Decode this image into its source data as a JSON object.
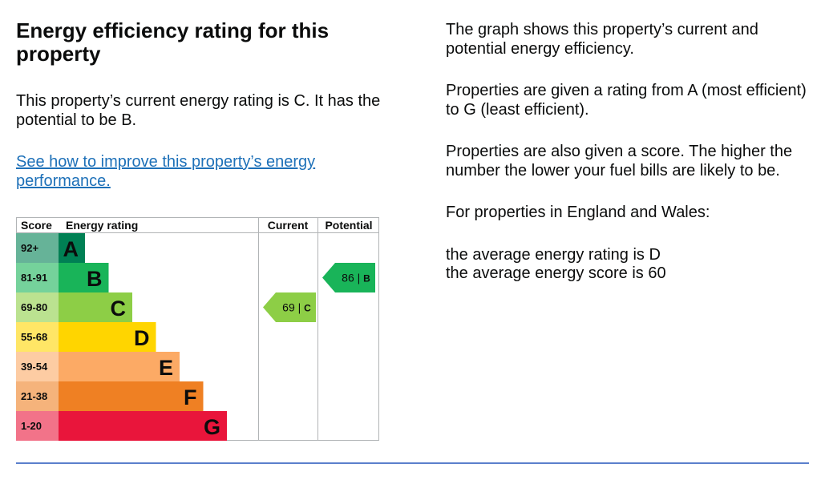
{
  "heading": "Energy efficiency rating for this property",
  "current_text": "This property’s current energy rating is C. It has the potential to be B.",
  "improve_link": "See how to improve this property’s energy performance.",
  "right": {
    "p1": "The graph shows this property’s current and potential energy efficiency.",
    "p2": "Properties are given a rating from A (most efficient) to G (least efficient).",
    "p3": "Properties are also given a score. The higher the number the lower your fuel bills are likely to be.",
    "p4": "For properties in England and Wales:",
    "avg_rating": "the average energy rating is D",
    "avg_score": "the average energy score is 60"
  },
  "chart_data": {
    "type": "bar",
    "headers": {
      "score": "Score",
      "rating": "Energy rating",
      "current": "Current",
      "potential": "Potential"
    },
    "bands": [
      {
        "letter": "A",
        "range": "92+",
        "color": "#008054",
        "score_bg": "#66b398"
      },
      {
        "letter": "B",
        "range": "81-91",
        "color": "#19b459",
        "score_bg": "#75d29b"
      },
      {
        "letter": "C",
        "range": "69-80",
        "color": "#8dce46",
        "score_bg": "#bbe290"
      },
      {
        "letter": "D",
        "range": "55-68",
        "color": "#ffd500",
        "score_bg": "#ffe666"
      },
      {
        "letter": "E",
        "range": "39-54",
        "color": "#fcaa65",
        "score_bg": "#fdcca3"
      },
      {
        "letter": "F",
        "range": "21-38",
        "color": "#ef8023",
        "score_bg": "#f5b37b"
      },
      {
        "letter": "G",
        "range": "1-20",
        "color": "#e9153b",
        "score_bg": "#f27389"
      }
    ],
    "current": {
      "score": "69",
      "letter": "C",
      "color": "#8dce46"
    },
    "potential": {
      "score": "86",
      "letter": "B",
      "color": "#19b459"
    }
  }
}
